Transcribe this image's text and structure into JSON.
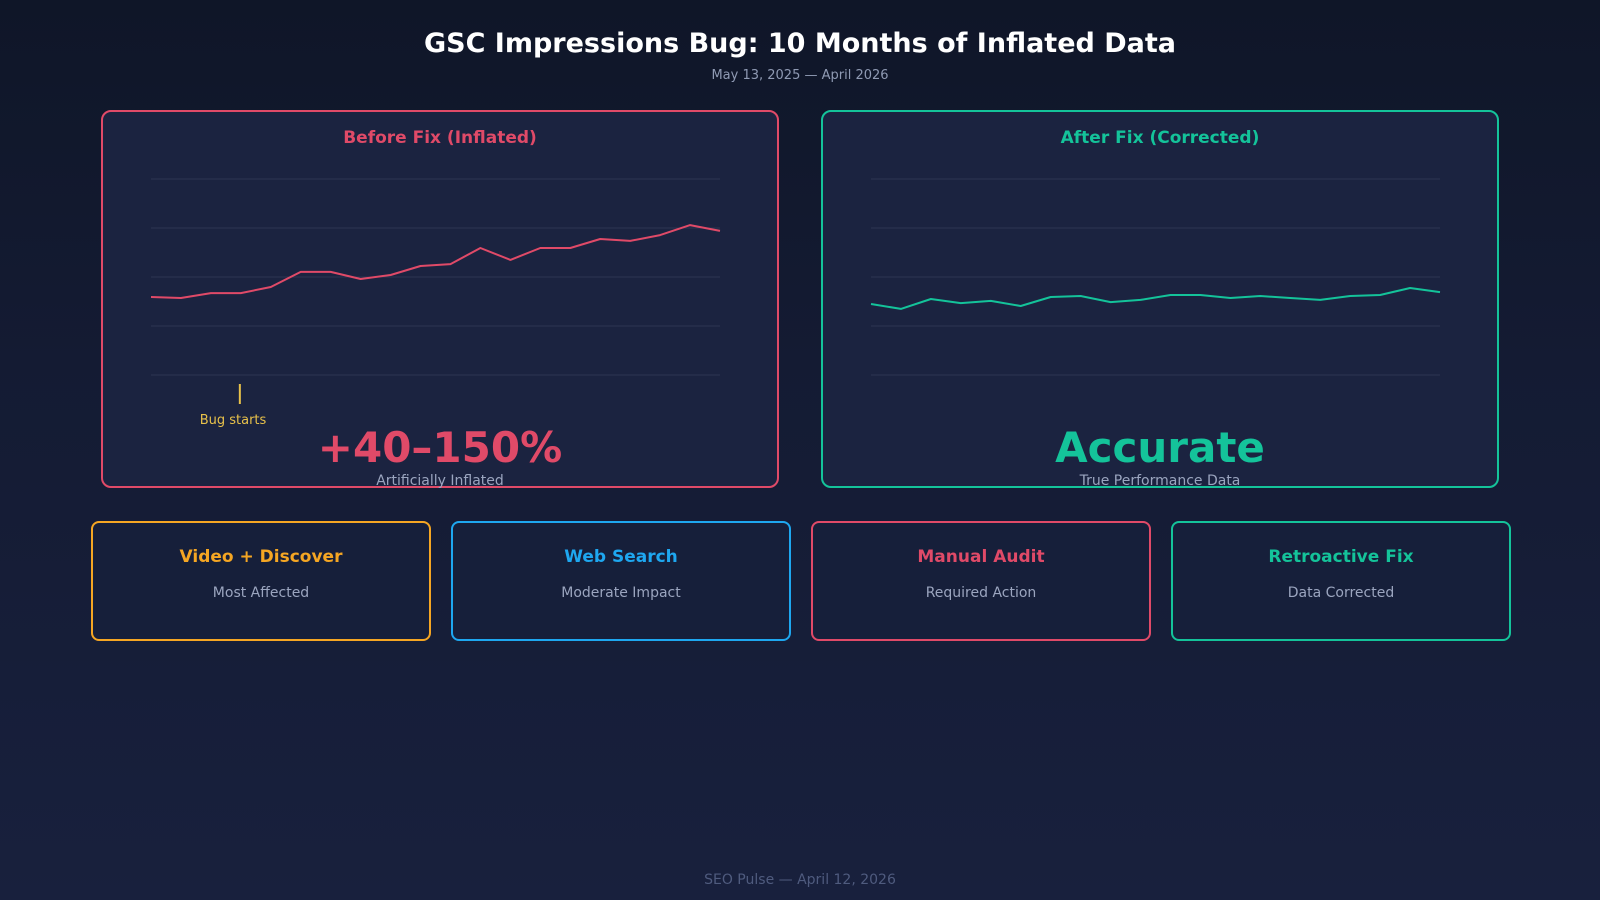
{
  "header": {
    "title": "GSC Impressions Bug: 10 Months of Inflated Data",
    "subtitle": "May 13, 2025 — April 2026"
  },
  "panels": [
    {
      "title": "Before Fix (Inflated)",
      "color": "#e04a68",
      "big_value": "+40–150%",
      "big_caption": "Artificially Inflated",
      "annotation": "Bug starts",
      "annotation_color": "#e8c14a"
    },
    {
      "title": "After Fix (Corrected)",
      "color": "#14c39a",
      "big_value": "Accurate",
      "big_caption": "True Performance Data"
    }
  ],
  "cards": [
    {
      "title": "Video + Discover",
      "subtitle": "Most Affected",
      "color": "#f5a623"
    },
    {
      "title": "Web Search",
      "subtitle": "Moderate Impact",
      "color": "#1ea7f0"
    },
    {
      "title": "Manual Audit",
      "subtitle": "Required Action",
      "color": "#e04a68"
    },
    {
      "title": "Retroactive Fix",
      "subtitle": "Data Corrected",
      "color": "#14c39a"
    }
  ],
  "footer": "SEO Pulse — April 12, 2026",
  "chart_data": [
    {
      "type": "line",
      "title": "Before Fix (Inflated)",
      "xlabel": "",
      "ylabel": "",
      "x": [
        1,
        2,
        3,
        4,
        5,
        6,
        7,
        8,
        9,
        10,
        11,
        12,
        13,
        14,
        15,
        16,
        17,
        18,
        19,
        20
      ],
      "values": [
        39.8,
        39.3,
        41.8,
        41.8,
        44.9,
        52.6,
        52.6,
        49.0,
        51.0,
        55.6,
        56.6,
        64.8,
        58.7,
        64.8,
        64.8,
        69.4,
        68.4,
        71.4,
        76.5,
        73.5
      ],
      "ylim": [
        0,
        100
      ],
      "grid": true,
      "gridlines": 5,
      "color": "#e04a68",
      "annotations": [
        {
          "x": 4,
          "text": "Bug starts"
        }
      ]
    },
    {
      "type": "line",
      "title": "After Fix (Corrected)",
      "xlabel": "",
      "ylabel": "",
      "x": [
        1,
        2,
        3,
        4,
        5,
        6,
        7,
        8,
        9,
        10,
        11,
        12,
        13,
        14,
        15,
        16,
        17,
        18,
        19,
        20
      ],
      "values": [
        36.2,
        33.7,
        38.8,
        36.7,
        37.8,
        35.2,
        39.8,
        40.3,
        37.2,
        38.3,
        40.8,
        40.8,
        39.3,
        40.3,
        39.3,
        38.3,
        40.3,
        40.8,
        44.4,
        42.3
      ],
      "ylim": [
        0,
        100
      ],
      "grid": true,
      "gridlines": 5,
      "color": "#14c39a"
    }
  ]
}
